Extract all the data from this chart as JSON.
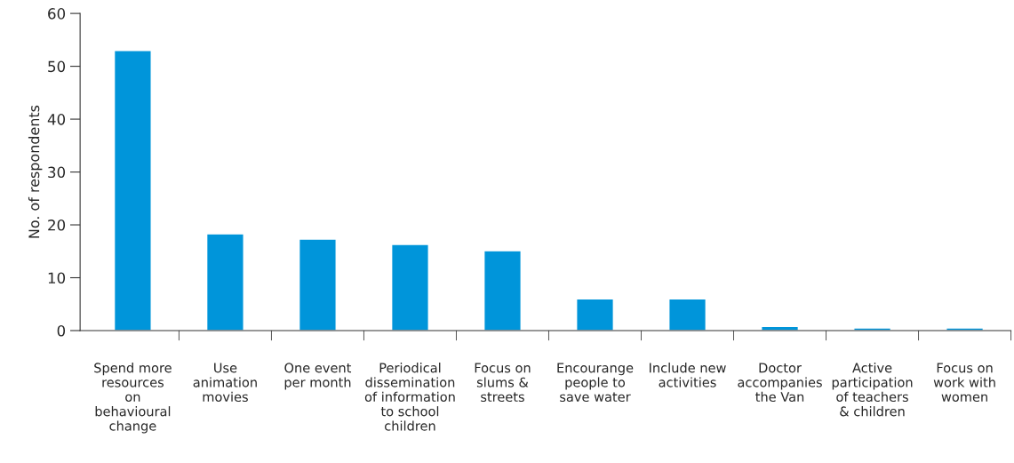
{
  "chart_data": {
    "type": "bar",
    "ylabel": "No. of respondents",
    "categories": [
      "Spend more\nresources\non\nbehavioural\nchange",
      "Use\nanimation\nmovies",
      "One event\nper month",
      "Periodical\ndissemination\nof information\nto school\nchildren",
      "Focus on\nslums &\nstreets",
      "Encourange\npeople to\nsave water",
      "Include new\nactivities",
      "Doctor\naccompanies\nthe Van",
      "Active\nparticipation\nof teachers\n& children",
      "Focus on\nwork with\nwomen"
    ],
    "values": [
      53,
      18.3,
      17.3,
      16.3,
      15.1,
      6,
      6,
      0.8,
      0.5,
      0.5
    ],
    "color": "#0095da",
    "ylim": [
      0,
      60
    ],
    "yticks": [
      0,
      10,
      20,
      30,
      40,
      50,
      60
    ],
    "grid": false,
    "legend": false
  }
}
